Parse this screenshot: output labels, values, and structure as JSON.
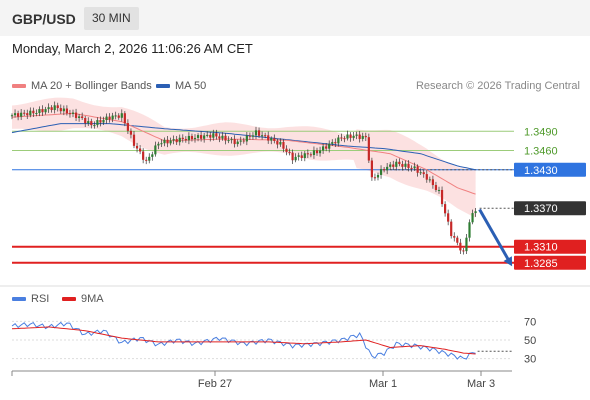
{
  "header": {
    "pair": "GBP/USD",
    "timeframe": "30 MIN"
  },
  "datetime": "Monday, March 2, 2026 11:06:26 AM CET",
  "legend": {
    "ma20": "MA 20 + Bollinger Bands",
    "ma50": "MA 50",
    "rsi": "RSI",
    "ma9": "9MA"
  },
  "credit": "Research © 2026 Trading Central",
  "colors": {
    "ma20": "#f08080",
    "ma50": "#2b5fb4",
    "band": "#fbdcdc",
    "resistance": "#9ccc7a",
    "pivot": "#2f74e0",
    "support": "#e02020",
    "last": "#333333",
    "candle_up": "#2e7d32",
    "candle_down": "#c62828",
    "rsi": "#4a7fe0",
    "rsi_ma": "#e02020"
  },
  "chart_data": [
    {
      "type": "candlestick",
      "ylim": [
        1.3255,
        1.3545
      ],
      "x_ticks": [
        "Feb 27",
        "Mar 1",
        "Mar 3"
      ],
      "levels": [
        {
          "label": "1.3490",
          "value": 1.349,
          "kind": "resistance"
        },
        {
          "label": "1.3460",
          "value": 1.346,
          "kind": "resistance"
        },
        {
          "label": "1.3430",
          "value": 1.343,
          "kind": "pivot"
        },
        {
          "label": "1.3370",
          "value": 1.337,
          "kind": "last"
        },
        {
          "label": "1.3310",
          "value": 1.331,
          "kind": "support"
        },
        {
          "label": "1.3285",
          "value": 1.3285,
          "kind": "support"
        }
      ],
      "anchors": [
        [
          0,
          1.3515
        ],
        [
          8,
          1.352
        ],
        [
          14,
          1.3528
        ],
        [
          22,
          1.3512
        ],
        [
          26,
          1.35
        ],
        [
          32,
          1.3512
        ],
        [
          36,
          1.3515
        ],
        [
          40,
          1.347
        ],
        [
          44,
          1.3442
        ],
        [
          48,
          1.3472
        ],
        [
          56,
          1.3478
        ],
        [
          66,
          1.3484
        ],
        [
          74,
          1.3472
        ],
        [
          80,
          1.3488
        ],
        [
          88,
          1.347
        ],
        [
          92,
          1.3448
        ],
        [
          100,
          1.3458
        ],
        [
          108,
          1.348
        ],
        [
          112,
          1.3483
        ],
        [
          116,
          1.348
        ],
        [
          118,
          1.3415
        ],
        [
          122,
          1.3432
        ],
        [
          126,
          1.344
        ],
        [
          132,
          1.3432
        ],
        [
          136,
          1.3418
        ],
        [
          140,
          1.3395
        ],
        [
          144,
          1.333
        ],
        [
          148,
          1.33
        ],
        [
          150,
          1.335
        ],
        [
          152,
          1.3368
        ]
      ],
      "ma20": [
        [
          0,
          1.3512
        ],
        [
          20,
          1.3518
        ],
        [
          36,
          1.3505
        ],
        [
          50,
          1.3475
        ],
        [
          70,
          1.3478
        ],
        [
          90,
          1.3476
        ],
        [
          110,
          1.3465
        ],
        [
          124,
          1.3455
        ],
        [
          136,
          1.343
        ],
        [
          146,
          1.3402
        ],
        [
          152,
          1.3392
        ]
      ],
      "ma50": [
        [
          0,
          1.3488
        ],
        [
          16,
          1.3502
        ],
        [
          32,
          1.3502
        ],
        [
          50,
          1.3494
        ],
        [
          70,
          1.3487
        ],
        [
          90,
          1.3477
        ],
        [
          110,
          1.3467
        ],
        [
          122,
          1.3463
        ],
        [
          134,
          1.3455
        ],
        [
          146,
          1.3436
        ],
        [
          152,
          1.343
        ]
      ],
      "band_width": 0.0026,
      "forecast": {
        "from": [
          152,
          1.3368
        ],
        "to": [
          162,
          1.3285
        ]
      }
    },
    {
      "type": "line",
      "ylim": [
        20,
        80
      ],
      "y_ticks": [
        70,
        50,
        30
      ],
      "rsi": [
        [
          0,
          65
        ],
        [
          6,
          67
        ],
        [
          12,
          64
        ],
        [
          18,
          68
        ],
        [
          24,
          56
        ],
        [
          30,
          60
        ],
        [
          36,
          47
        ],
        [
          42,
          52
        ],
        [
          48,
          45
        ],
        [
          54,
          50
        ],
        [
          60,
          46
        ],
        [
          68,
          52
        ],
        [
          76,
          46
        ],
        [
          84,
          50
        ],
        [
          92,
          44
        ],
        [
          100,
          46
        ],
        [
          108,
          50
        ],
        [
          114,
          56
        ],
        [
          118,
          32
        ],
        [
          122,
          36
        ],
        [
          126,
          46
        ],
        [
          132,
          44
        ],
        [
          138,
          40
        ],
        [
          144,
          34
        ],
        [
          148,
          30
        ],
        [
          152,
          38
        ]
      ],
      "ma9": [
        [
          0,
          62
        ],
        [
          12,
          64
        ],
        [
          24,
          60
        ],
        [
          36,
          52
        ],
        [
          48,
          48
        ],
        [
          60,
          48
        ],
        [
          72,
          48
        ],
        [
          84,
          48
        ],
        [
          96,
          46
        ],
        [
          108,
          48
        ],
        [
          116,
          50
        ],
        [
          124,
          42
        ],
        [
          134,
          44
        ],
        [
          142,
          40
        ],
        [
          148,
          36
        ],
        [
          152,
          35
        ]
      ]
    }
  ]
}
